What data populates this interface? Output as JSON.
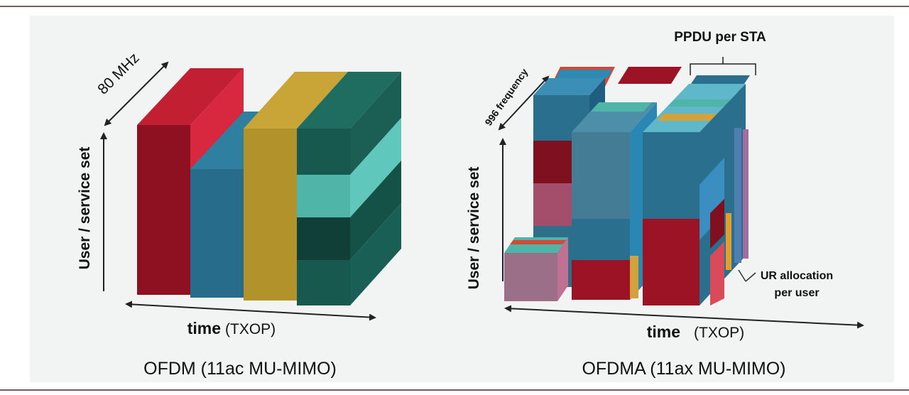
{
  "left": {
    "bandwidth_label": "80 MHz",
    "y_axis_label": "User / service set",
    "x_axis_label_main": "time",
    "x_axis_label_sub": "(TXOP)",
    "caption": "OFDM (11ac MU-MIMO)"
  },
  "right": {
    "ppdu_label": "PPDU per STA",
    "frequency_label": "996 frequency",
    "y_axis_label": "User / service set",
    "x_axis_label_main": "time",
    "x_axis_label_sub": "(TXOP)",
    "ru_label_line1": "UR allocation",
    "ru_label_line2": "per user",
    "caption": "OFDMA (11ax MU-MIMO)"
  },
  "colors": {
    "red": "#9b1324",
    "blue": "#2b6f8f",
    "gold": "#b2922b",
    "teal_dark": "#17584f",
    "teal_light": "#4fb5a8",
    "pink": "#a54e6c"
  }
}
